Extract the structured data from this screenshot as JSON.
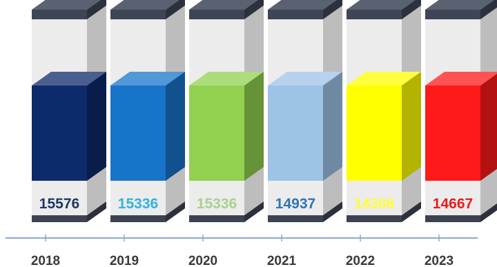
{
  "chart_data": {
    "type": "bar",
    "categories": [
      "2018",
      "2019",
      "2020",
      "2021",
      "2022",
      "2023"
    ],
    "values": [
      15576,
      15336,
      15336,
      14937,
      14308,
      14667
    ],
    "value_labels": [
      "15576",
      "15336",
      "15336",
      "14937",
      "14308",
      "14667"
    ],
    "bar_colors": [
      "#0d2a6b",
      "#1874c9",
      "#92d050",
      "#9dc3e6",
      "#ffff00",
      "#ff1a1a"
    ],
    "label_colors": [
      "#1f3864",
      "#2fb3e0",
      "#a9d18e",
      "#2e75b6",
      "#ffff33",
      "#e81d1d"
    ],
    "style": "3d-column-cylinders",
    "grid": false,
    "legend": "none",
    "title": "",
    "xlabel": "",
    "ylabel": ""
  }
}
